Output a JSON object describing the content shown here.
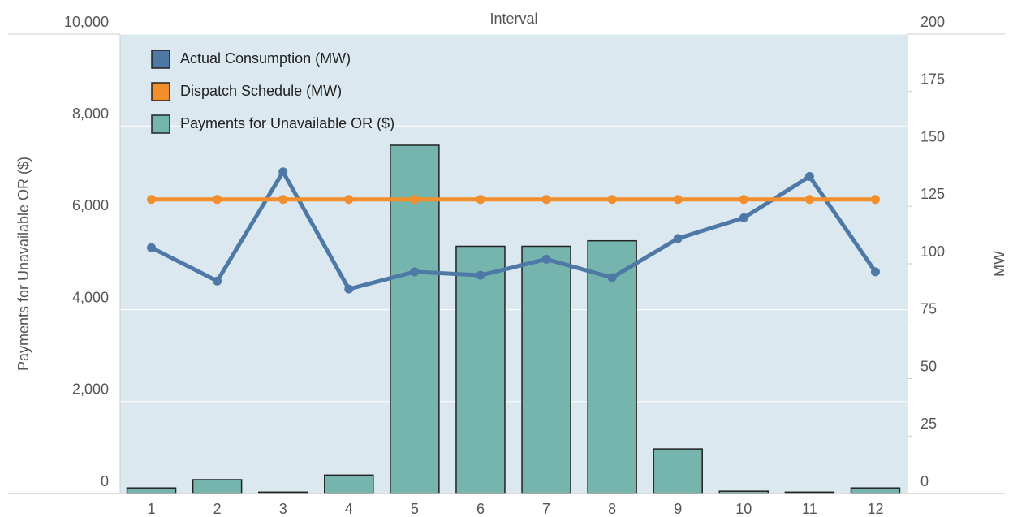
{
  "chart_data": {
    "type": "bar-line",
    "title": "Interval",
    "ylabel": "Payments for Unavailable OR ($)",
    "y2label": "MW",
    "categories": [
      "1",
      "2",
      "3",
      "4",
      "5",
      "6",
      "7",
      "8",
      "9",
      "10",
      "11",
      "12"
    ],
    "series": [
      {
        "name": "Actual Consumption (MW)",
        "color": "#4e79a7",
        "type": "line",
        "axis": "y2",
        "values": [
          107,
          92.5,
          140,
          89,
          96.5,
          95,
          102,
          94,
          111,
          120,
          138,
          96.5
        ]
      },
      {
        "name": "Dispatch Schedule (MW)",
        "color": "#f28e2b",
        "type": "line",
        "axis": "y2",
        "values": [
          128,
          128,
          128,
          128,
          128,
          128,
          128,
          128,
          128,
          128,
          128,
          128
        ]
      },
      {
        "name": "Payments for Unavailable OR ($)",
        "color": "#76b5ad",
        "type": "bar",
        "axis": "y",
        "values": [
          120,
          300,
          30,
          400,
          7580,
          5380,
          5380,
          5500,
          970,
          50,
          30,
          120
        ]
      }
    ],
    "ylim": [
      0,
      10000
    ],
    "yticks": [
      0,
      {
        "value": 2000,
        "label": "2,000"
      },
      {
        "value": 4000,
        "label": "4,000"
      },
      {
        "value": 6000,
        "label": "6,000"
      },
      {
        "value": 8000,
        "label": "8,000"
      },
      {
        "value": 10000,
        "label": "10,000"
      }
    ],
    "y2lim": [
      0,
      200
    ],
    "y2ticks": [
      0,
      25,
      50,
      75,
      100,
      125,
      150,
      175,
      200
    ],
    "grid": true,
    "legend": "top-left"
  }
}
